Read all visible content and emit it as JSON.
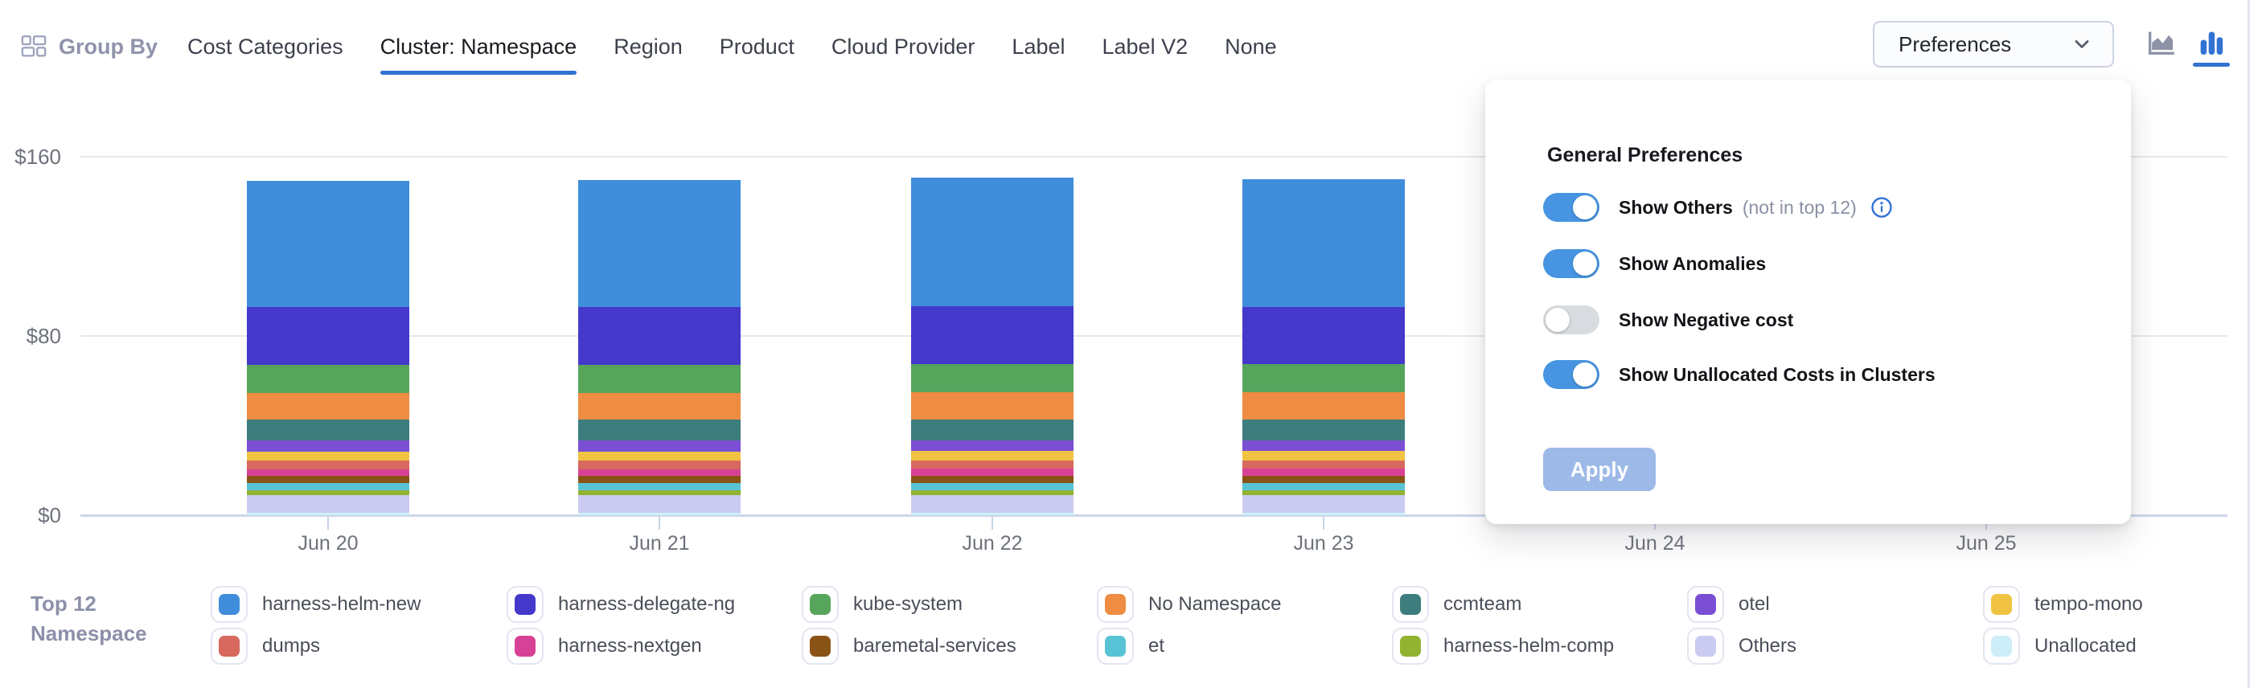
{
  "header": {
    "group_by": {
      "label": "Group By"
    },
    "tabs": [
      {
        "label": "Cost Categories",
        "active": false
      },
      {
        "label": "Cluster: Namespace",
        "active": true
      },
      {
        "label": "Region",
        "active": false
      },
      {
        "label": "Product",
        "active": false
      },
      {
        "label": "Cloud Provider",
        "active": false
      },
      {
        "label": "Label",
        "active": false
      },
      {
        "label": "Label V2",
        "active": false
      },
      {
        "label": "None",
        "active": false
      }
    ],
    "preferences_button": {
      "label": "Preferences",
      "icon": "chevron-down-icon"
    },
    "chart_type_switcher": [
      {
        "icon": "area-chart-icon",
        "active": false
      },
      {
        "icon": "bar-chart-icon",
        "active": true
      }
    ]
  },
  "preferences_panel": {
    "title": "General Preferences",
    "toggles": [
      {
        "label": "Show Others",
        "suffix": "(not in top 12)",
        "info_icon": true,
        "on": true
      },
      {
        "label": "Show Anomalies",
        "suffix": "",
        "info_icon": false,
        "on": true
      },
      {
        "label": "Show Negative cost",
        "suffix": "",
        "info_icon": false,
        "on": false
      },
      {
        "label": "Show Unallocated Costs in Clusters",
        "suffix": "",
        "info_icon": false,
        "on": true
      }
    ],
    "apply_button": {
      "label": "Apply",
      "enabled": false
    }
  },
  "chart_data": {
    "type": "bar",
    "stacked": true,
    "categories": [
      "Jun 20",
      "Jun 21",
      "Jun 22",
      "Jun 23",
      "Jun 24",
      "Jun 25"
    ],
    "y_axis": {
      "ticks": [
        "$0",
        "$80",
        "$160"
      ],
      "min": 0,
      "max": 160,
      "unit": "$"
    },
    "grid": "horizontal",
    "legend_position": "bottom",
    "values_note": "Dollar values estimated from pixel heights; bars for Jun 24 and Jun 25 are hidden behind the open Preferences popover (stack order top-to-bottom matches series order below).",
    "series": [
      {
        "name": "harness-helm-new",
        "color": "#3F8DDB",
        "values": [
          56.5,
          56.8,
          57.4,
          56.9
        ]
      },
      {
        "name": "harness-delegate-ng",
        "color": "#4439CB",
        "values": [
          25.7,
          25.6,
          25.8,
          25.7
        ]
      },
      {
        "name": "kube-system",
        "color": "#57A55C",
        "values": [
          12.5,
          12.6,
          12.6,
          12.6
        ]
      },
      {
        "name": "No Namespace",
        "color": "#ED8C42",
        "values": [
          11.8,
          11.9,
          11.9,
          11.9
        ]
      },
      {
        "name": "ccmteam",
        "color": "#3E7D7D",
        "values": [
          9.5,
          9.4,
          9.5,
          9.5
        ]
      },
      {
        "name": "otel",
        "color": "#7B4FD3",
        "values": [
          4.8,
          4.8,
          4.8,
          4.8
        ]
      },
      {
        "name": "tempo-mono",
        "color": "#F0C342",
        "values": [
          4.1,
          4.1,
          4.1,
          4.1
        ]
      },
      {
        "name": "dumps",
        "color": "#D7695E",
        "values": [
          3.8,
          3.8,
          3.8,
          3.8
        ]
      },
      {
        "name": "harness-nextgen",
        "color": "#D84296",
        "values": [
          3.1,
          3.1,
          3.1,
          3.1
        ]
      },
      {
        "name": "baremetal-services",
        "color": "#8A5316",
        "values": [
          3.2,
          3.2,
          3.2,
          3.2
        ]
      },
      {
        "name": "et",
        "color": "#58C3D5",
        "values": [
          3.2,
          3.2,
          3.2,
          3.2
        ]
      },
      {
        "name": "harness-helm-comp",
        "color": "#92B32F",
        "values": [
          2.1,
          2.1,
          2.1,
          2.1
        ]
      },
      {
        "name": "Others",
        "color": "#CBCBF2",
        "values": [
          8.0,
          8.0,
          8.0,
          8.0
        ]
      },
      {
        "name": "Unallocated",
        "color": "#CDEEF8",
        "values": [
          1.0,
          1.0,
          1.0,
          1.0
        ]
      }
    ]
  },
  "legend": {
    "title_line1": "Top 12",
    "title_line2": "Namespace",
    "row1": [
      "harness-helm-new",
      "harness-delegate-ng",
      "kube-system",
      "No Namespace",
      "ccmteam",
      "otel",
      "tempo-mono"
    ],
    "row2": [
      "dumps",
      "harness-nextgen",
      "baremetal-services",
      "et",
      "harness-helm-comp",
      "Others",
      "Unallocated"
    ]
  },
  "colors": {
    "accent_blue": "#3273D2",
    "toggle_on": "#4795E2",
    "toggle_off_track": "#D8DBDF",
    "apply_disabled_bg": "#9CB9E7",
    "axis_line": "#CCD6EA",
    "gridline": "#E8E8E8",
    "muted_text": "#8F93AB"
  }
}
